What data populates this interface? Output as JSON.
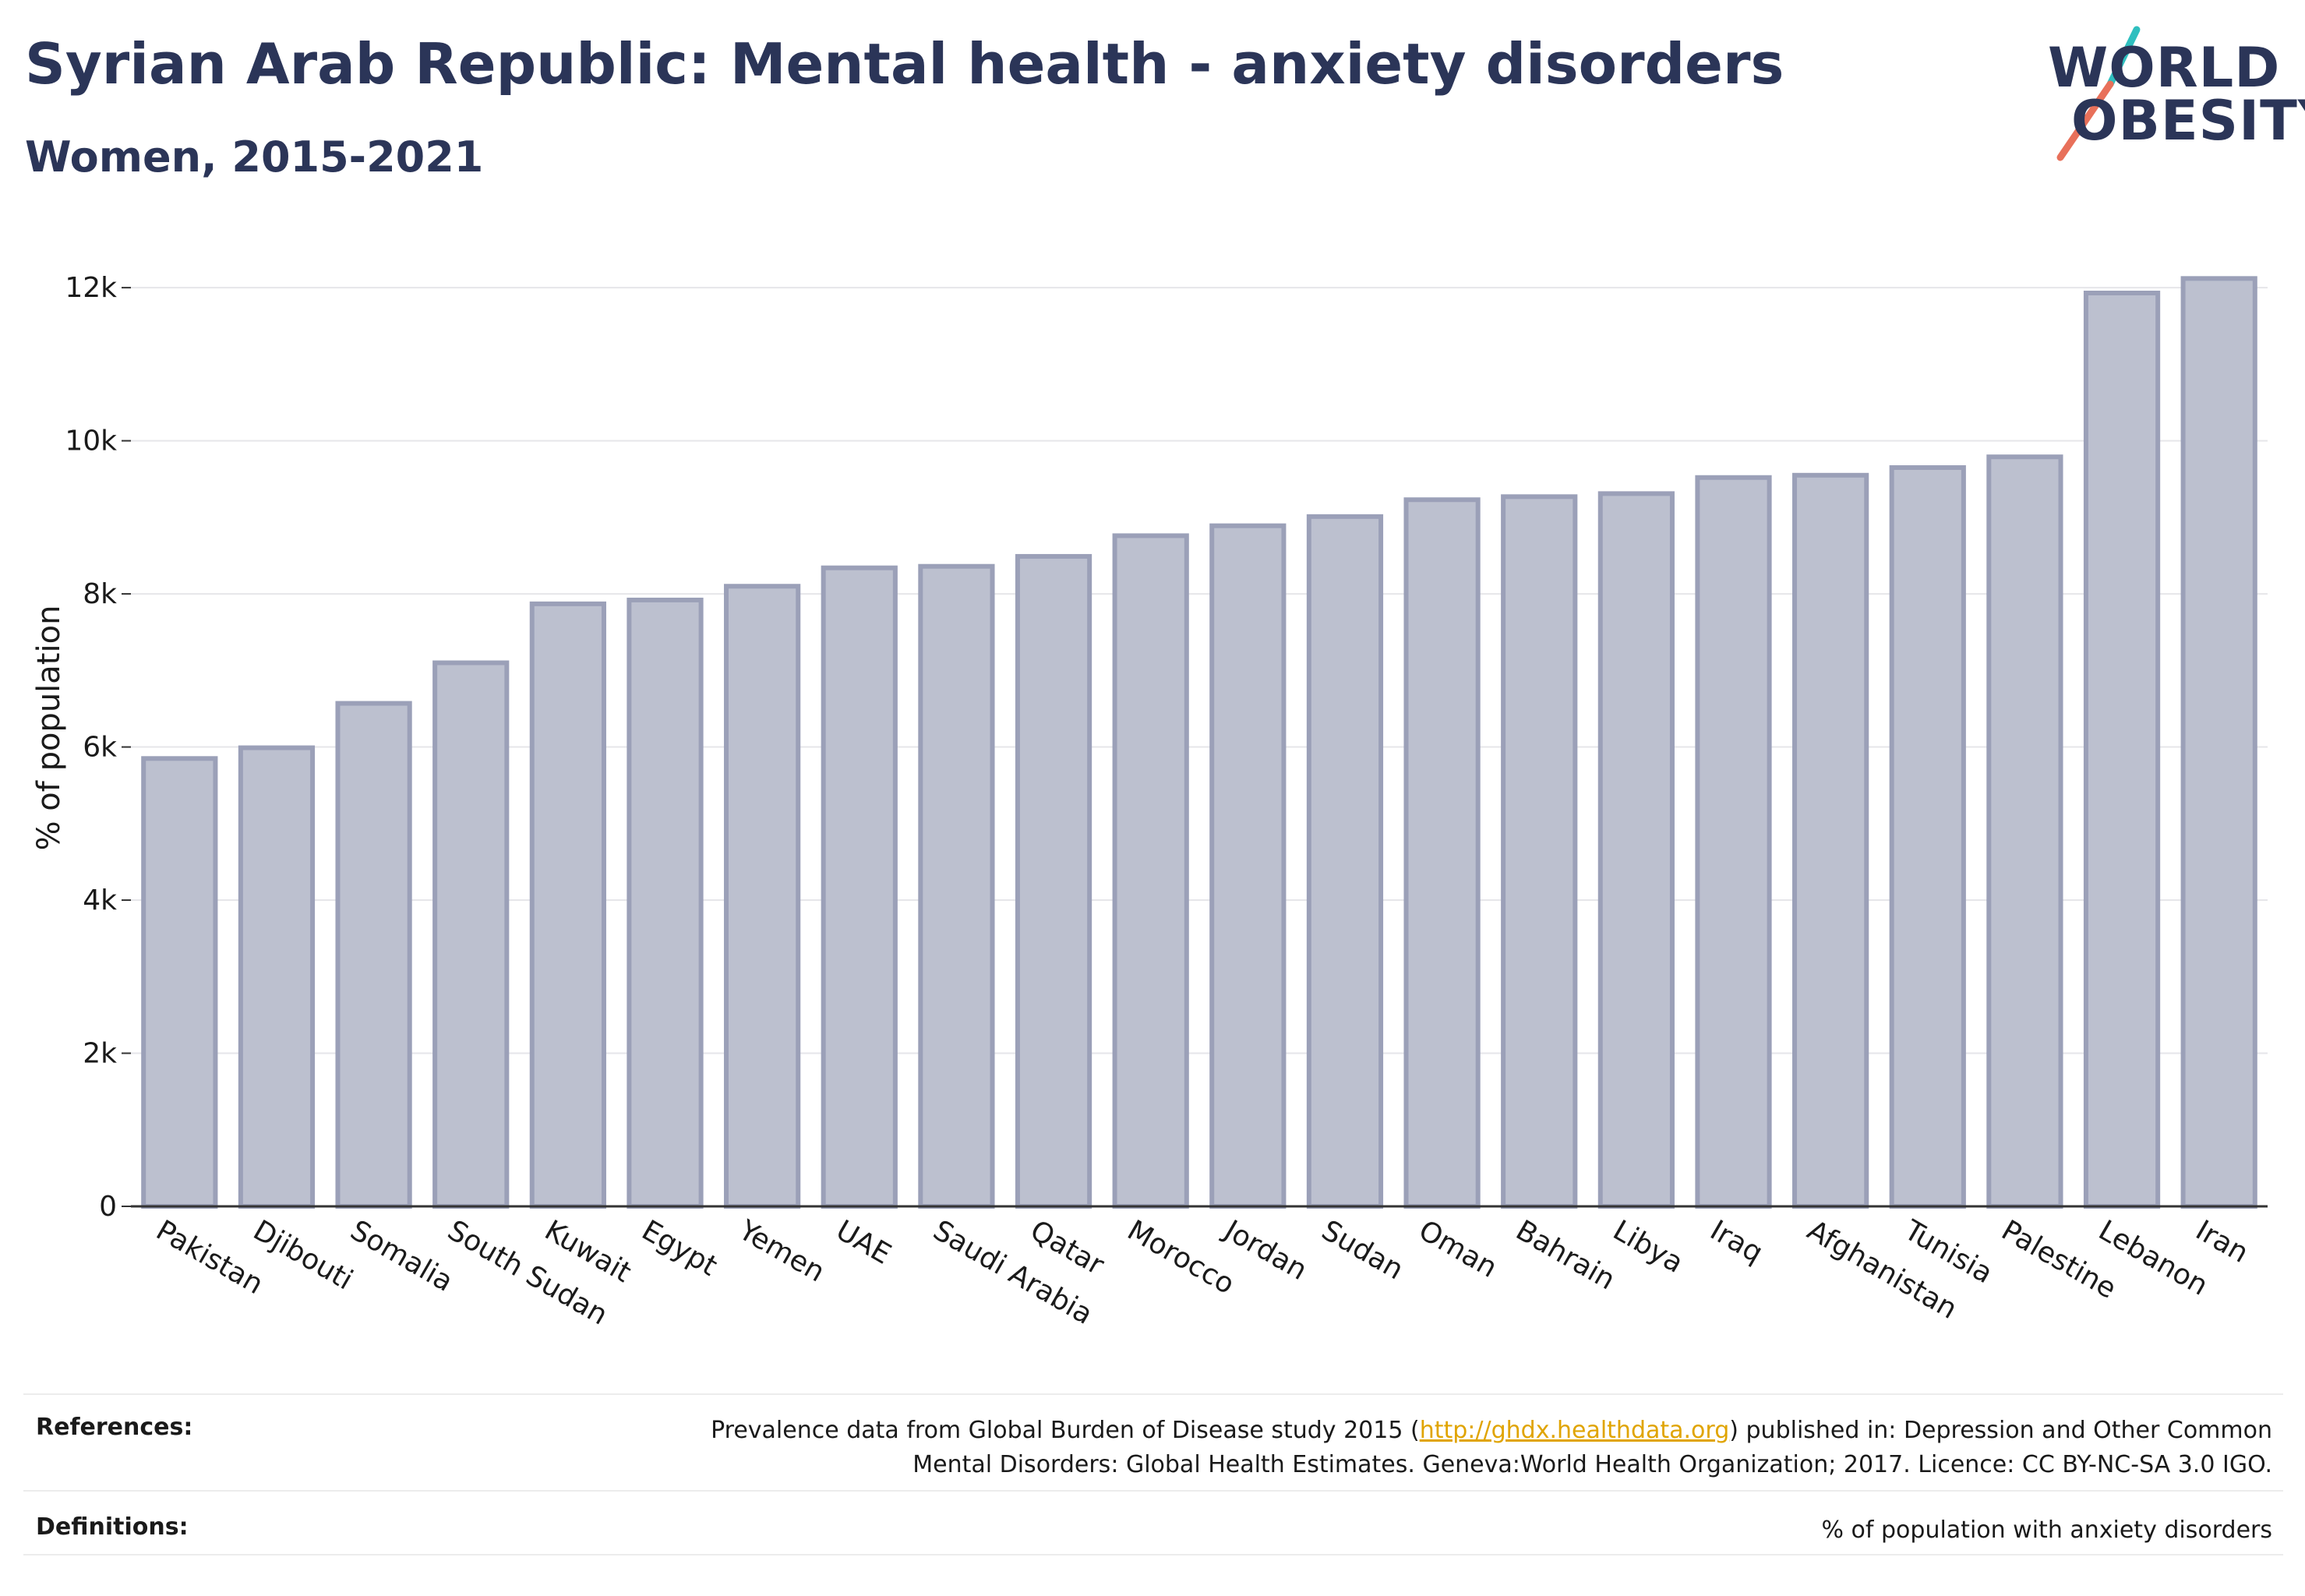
{
  "header": {
    "title": "Syrian Arab Republic: Mental health - anxiety disorders",
    "subtitle": "Women, 2015-2021"
  },
  "logo": {
    "line1": "WORLD",
    "line2": "OBESITY",
    "text_color": "#2b3558",
    "slash_colors": [
      "#2fbfbf",
      "#e8705a"
    ]
  },
  "chart_data": {
    "type": "bar",
    "title": "Syrian Arab Republic: Mental health - anxiety disorders",
    "subtitle": "Women, 2015-2021",
    "xlabel": "",
    "ylabel": "% of population",
    "ylim": [
      0,
      12500
    ],
    "yticks": [
      0,
      2000,
      4000,
      6000,
      8000,
      10000,
      12000
    ],
    "ytick_labels": [
      "0",
      "2k",
      "4k",
      "6k",
      "8k",
      "10k",
      "12k"
    ],
    "grid": true,
    "bar_fill": "#bcc0cf",
    "bar_stroke": "#9ba0b8",
    "categories": [
      "Pakistan",
      "Djibouti",
      "Somalia",
      "South Sudan",
      "Kuwait",
      "Egypt",
      "Yemen",
      "UAE",
      "Saudi Arabia",
      "Qatar",
      "Morocco",
      "Jordan",
      "Sudan",
      "Oman",
      "Bahrain",
      "Libya",
      "Iraq",
      "Afghanistan",
      "Tunisia",
      "Palestine",
      "Lebanon",
      "Iran"
    ],
    "values": [
      5850,
      5990,
      6570,
      7100,
      7870,
      7920,
      8100,
      8340,
      8360,
      8490,
      8760,
      8890,
      9010,
      9230,
      9270,
      9310,
      9520,
      9550,
      9650,
      9790,
      11930,
      12120
    ]
  },
  "footer": {
    "references_label": "References:",
    "references_pre": "Prevalence data from Global Burden of Disease study 2015 (",
    "references_link": "http://ghdx.healthdata.org",
    "references_post": ") published in: Depression and Other Common",
    "references_line2": "Mental Disorders: Global Health Estimates. Geneva:World Health Organization; 2017. Licence: CC BY-NC-SA 3.0 IGO.",
    "definitions_label": "Definitions:",
    "definitions_text": "% of population with anxiety disorders"
  }
}
